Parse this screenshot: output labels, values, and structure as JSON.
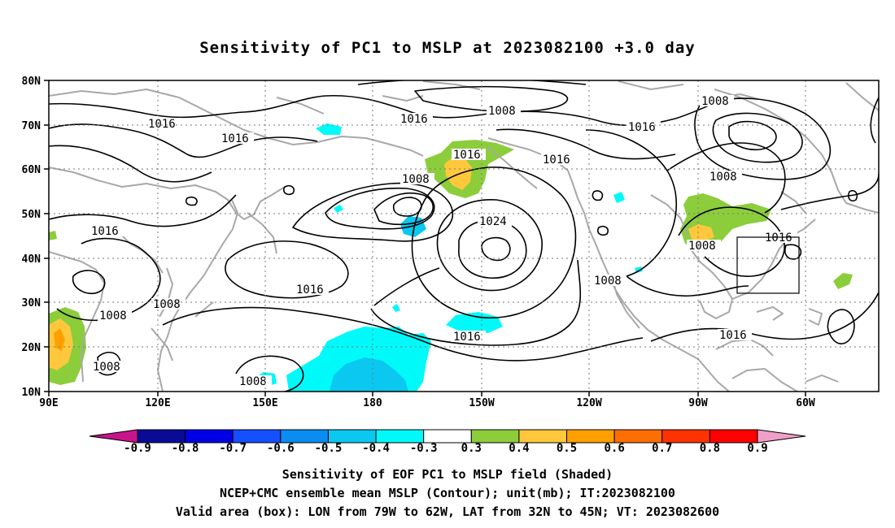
{
  "title": "Sensitivity of PC1 to MSLP at 2023082100 +3.0 day",
  "map": {
    "lat_labels": [
      "80N",
      "70N",
      "60N",
      "50N",
      "40N",
      "30N",
      "20N",
      "10N"
    ],
    "lon_labels": [
      "90E",
      "120E",
      "150E",
      "180",
      "150W",
      "120W",
      "90W",
      "60W"
    ],
    "contour_labels": [
      "1016",
      "1016",
      "1008",
      "1016",
      "1016",
      "1008",
      "1016",
      "1016",
      "1008",
      "1016",
      "1024",
      "1008",
      "1016",
      "1016",
      "1016",
      "1008",
      "1008",
      "1008",
      "1008",
      "1016",
      "1008",
      "1008"
    ],
    "valid_box": {
      "lon_from": "79W",
      "lon_to": "62W",
      "lat_from": "32N",
      "lat_to": "45N"
    },
    "colors": {
      "land": "#a8a8a8",
      "contour": "#000000"
    }
  },
  "colorbar": {
    "labels": [
      "-0.9",
      "-0.8",
      "-0.7",
      "-0.6",
      "-0.5",
      "-0.4",
      "-0.3",
      "0.3",
      "0.4",
      "0.5",
      "0.6",
      "0.7",
      "0.8",
      "0.9"
    ],
    "colors": [
      "#0a0a96",
      "#0000e6",
      "#1450ff",
      "#0a8cf0",
      "#0ac8f0",
      "#00fafa",
      "#ffffff",
      "#8ccd3c",
      "#ffc83c",
      "#ffa000",
      "#ff6e00",
      "#ff3200",
      "#ff0000"
    ],
    "left_tip_color": "#c8148c",
    "right_tip_color": "#f0a0c8"
  },
  "captions": [
    "Sensitivity of EOF PC1 to MSLP field (Shaded)",
    "NCEP+CMC ensemble mean MSLP (Contour); unit(mb); IT:2023082100",
    "Valid area (box): LON from 79W to 62W, LAT from 32N to 45N; VT: 2023082600"
  ]
}
